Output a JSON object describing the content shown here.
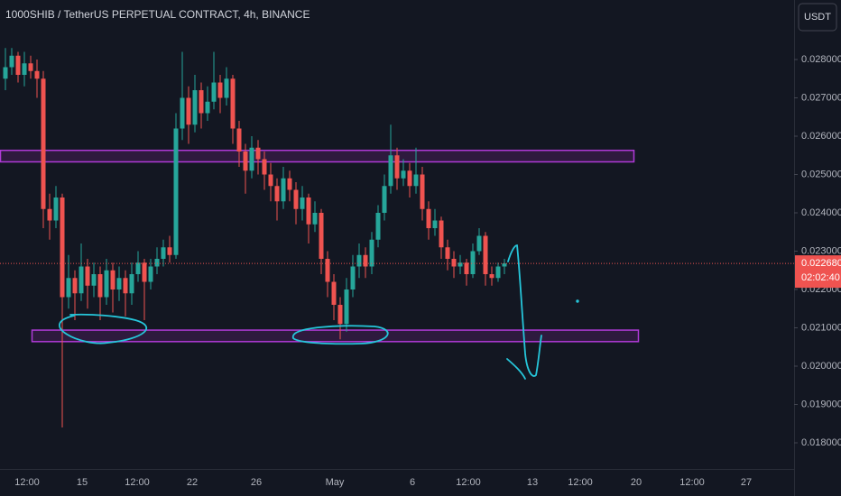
{
  "chart_data": {
    "type": "candlestick",
    "title": "1000SHIB / TetherUS PERPETUAL CONTRACT, 4h, BINANCE",
    "currency_button": "USDT",
    "up_color": "#26a69a",
    "down_color": "#ef5350",
    "open": [
      0.0275,
      0.0278,
      0.0281,
      0.0276,
      0.0279,
      0.0277,
      0.0275,
      0.0241,
      0.0238,
      0.0244,
      0.0218,
      0.0223,
      0.0219,
      0.0226,
      0.0221,
      0.0224,
      0.0218,
      0.0225,
      0.022,
      0.0223,
      0.0219,
      0.0224,
      0.0227,
      0.0222,
      0.0226,
      0.0228,
      0.0231,
      0.0229,
      0.0262,
      0.027,
      0.0263,
      0.0272,
      0.0266,
      0.0269,
      0.0274,
      0.027,
      0.0275,
      0.0262,
      0.0256,
      0.0251,
      0.0257,
      0.0254,
      0.025,
      0.0247,
      0.0243,
      0.0249,
      0.0246,
      0.0241,
      0.0244,
      0.0237,
      0.024,
      0.0228,
      0.0222,
      0.0216,
      0.0211,
      0.022,
      0.0226,
      0.0229,
      0.0226,
      0.0233,
      0.024,
      0.0247,
      0.0255,
      0.0249,
      0.0251,
      0.0247,
      0.025,
      0.0241,
      0.0236,
      0.0238,
      0.0231,
      0.0228,
      0.0226,
      0.0227,
      0.0224,
      0.023,
      0.0234,
      0.0224,
      0.0223,
      0.0226
    ],
    "high": [
      0.0283,
      0.0283,
      0.0282,
      0.0282,
      0.0281,
      0.028,
      0.0277,
      0.0245,
      0.0247,
      0.0245,
      0.0229,
      0.0225,
      0.0232,
      0.0228,
      0.0227,
      0.0226,
      0.0228,
      0.0227,
      0.0226,
      0.0225,
      0.0227,
      0.023,
      0.0228,
      0.0228,
      0.0231,
      0.0233,
      0.0234,
      0.0266,
      0.0282,
      0.0273,
      0.0276,
      0.0274,
      0.0273,
      0.0282,
      0.0276,
      0.0278,
      0.0276,
      0.0264,
      0.0258,
      0.026,
      0.0259,
      0.0256,
      0.0253,
      0.0249,
      0.0252,
      0.0251,
      0.0248,
      0.0247,
      0.0245,
      0.0243,
      0.0241,
      0.023,
      0.0224,
      0.0218,
      0.0223,
      0.0229,
      0.0232,
      0.0231,
      0.0235,
      0.0242,
      0.025,
      0.0263,
      0.0257,
      0.0254,
      0.0253,
      0.0257,
      0.0252,
      0.0243,
      0.0241,
      0.0239,
      0.0233,
      0.023,
      0.0229,
      0.0228,
      0.0232,
      0.0236,
      0.0235,
      0.0226,
      0.0227,
      0.0228
    ],
    "low": [
      0.0272,
      0.0276,
      0.0274,
      0.0273,
      0.0275,
      0.027,
      0.0236,
      0.0233,
      0.0236,
      0.0184,
      0.0215,
      0.0212,
      0.0217,
      0.0215,
      0.0218,
      0.0212,
      0.0216,
      0.0214,
      0.0217,
      0.0213,
      0.0216,
      0.0222,
      0.0212,
      0.022,
      0.0224,
      0.0226,
      0.0227,
      0.0228,
      0.0259,
      0.0258,
      0.0261,
      0.0262,
      0.0264,
      0.0267,
      0.0266,
      0.0268,
      0.0258,
      0.0252,
      0.0245,
      0.0249,
      0.025,
      0.0246,
      0.0243,
      0.0238,
      0.0241,
      0.0243,
      0.0237,
      0.0238,
      0.0232,
      0.0235,
      0.0224,
      0.0218,
      0.0212,
      0.0207,
      0.0209,
      0.0218,
      0.0223,
      0.0223,
      0.0224,
      0.0231,
      0.0238,
      0.0245,
      0.0246,
      0.0247,
      0.0244,
      0.0245,
      0.0238,
      0.0233,
      0.0234,
      0.0228,
      0.0225,
      0.0223,
      0.0224,
      0.0221,
      0.0223,
      0.0229,
      0.0221,
      0.0221,
      0.0222,
      0.0224
    ],
    "close": [
      0.0278,
      0.0281,
      0.0276,
      0.0279,
      0.0277,
      0.0275,
      0.0241,
      0.0238,
      0.0244,
      0.0218,
      0.0223,
      0.0219,
      0.0226,
      0.0221,
      0.0224,
      0.0218,
      0.0225,
      0.022,
      0.0223,
      0.0219,
      0.0224,
      0.0227,
      0.0222,
      0.0226,
      0.0228,
      0.0231,
      0.0229,
      0.0262,
      0.027,
      0.0263,
      0.0272,
      0.0266,
      0.0269,
      0.0274,
      0.027,
      0.0275,
      0.0262,
      0.0256,
      0.0251,
      0.0257,
      0.0254,
      0.025,
      0.0247,
      0.0243,
      0.0249,
      0.0246,
      0.0241,
      0.0244,
      0.0237,
      0.024,
      0.0228,
      0.0222,
      0.0216,
      0.0211,
      0.022,
      0.0226,
      0.0229,
      0.0226,
      0.0233,
      0.024,
      0.0247,
      0.0255,
      0.0249,
      0.0251,
      0.0247,
      0.025,
      0.0241,
      0.0236,
      0.0238,
      0.0231,
      0.0228,
      0.0226,
      0.0227,
      0.0224,
      0.023,
      0.0234,
      0.0224,
      0.0223,
      0.0226,
      0.02268
    ],
    "x_labels": [
      "12:00",
      "15",
      "12:00",
      "22",
      "26",
      "May",
      "6",
      "12:00",
      "13",
      "12:00",
      "20",
      "12:00",
      "27"
    ],
    "ylim": [
      0.017318,
      0.029553
    ],
    "yticks": [
      {
        "value": 0.018,
        "label": "0.018000"
      },
      {
        "value": 0.019,
        "label": "0.019000"
      },
      {
        "value": 0.02,
        "label": "0.020000"
      },
      {
        "value": 0.021,
        "label": "0.021000"
      },
      {
        "value": 0.022,
        "label": "0.022000"
      },
      {
        "value": 0.023,
        "label": "0.023000"
      },
      {
        "value": 0.024,
        "label": "0.024000"
      },
      {
        "value": 0.025,
        "label": "0.025000"
      },
      {
        "value": 0.026,
        "label": "0.026000"
      },
      {
        "value": 0.027,
        "label": "0.027000"
      },
      {
        "value": 0.028,
        "label": "0.028000"
      }
    ],
    "last_price": {
      "value": 0.02268,
      "label": "0.022680"
    },
    "countdown": "02:02:40",
    "zones": [
      {
        "top": 0.02563,
        "bottom": 0.02533
      },
      {
        "top": 0.02094,
        "bottom": 0.02064
      }
    ]
  }
}
